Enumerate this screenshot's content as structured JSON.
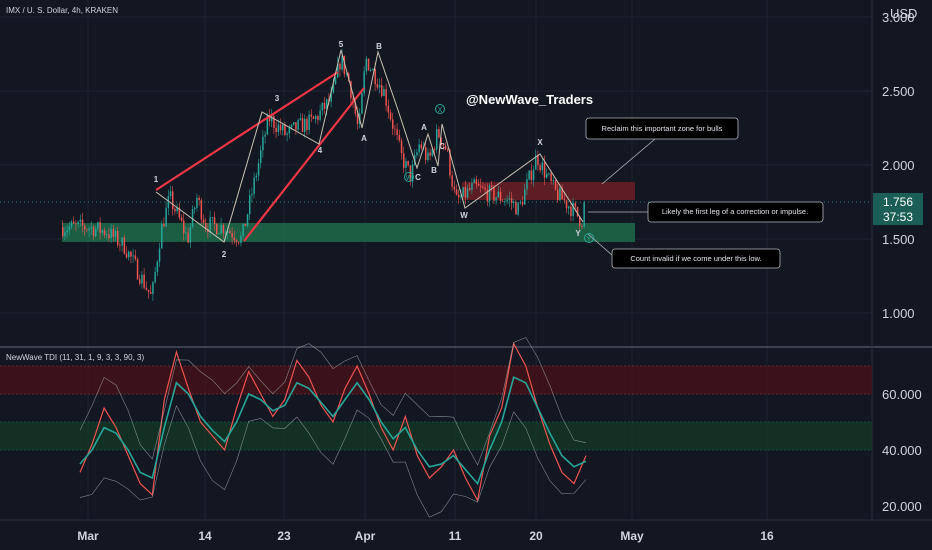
{
  "header": {
    "title": "IMX / U. S. Dollar, 4h, KRAKEN",
    "currency": "USD"
  },
  "watermark": "@NewWave_Traders",
  "price_badge": {
    "price": "1.756",
    "countdown": "37:53"
  },
  "colors": {
    "background": "#131722",
    "up": "#26a69a",
    "down": "#ef5350",
    "trendline": "#f23645",
    "wave_line": "#c9c1b0",
    "green_zone": "#1e6b4a",
    "red_zone": "#6b1e24",
    "badge": "#1a5e56"
  },
  "annotations": [
    "Reclaim this important zone for bulls",
    "Likely the first leg of a correction or impulse.",
    "Count invalid if we come under this low."
  ],
  "chart_data": [
    {
      "type": "candlestick",
      "title": "IMX / U. S. Dollar, 4h, KRAKEN",
      "y_axis": {
        "ticks": [
          "1.000",
          "1.500",
          "2.000",
          "2.500",
          "3.000"
        ],
        "range": [
          0.85,
          3.1
        ]
      },
      "x_axis": {
        "ticks": [
          "Mar",
          "14",
          "23",
          "Apr",
          "11",
          "20",
          "May",
          "16"
        ]
      },
      "price_path": [
        [
          "Mar 1",
          1.58
        ],
        [
          "Mar 3",
          1.55
        ],
        [
          "Mar 5",
          1.45
        ],
        [
          "Mar 7",
          1.22
        ],
        [
          "Mar 8",
          1.1
        ],
        [
          "Mar 9",
          1.55
        ],
        [
          "Mar 10",
          1.78
        ],
        [
          "Mar 12",
          1.5
        ],
        [
          "Mar 13",
          1.78
        ],
        [
          "Mar 14",
          1.6
        ],
        [
          "Mar 16",
          1.58
        ],
        [
          "Mar 18",
          1.5
        ],
        [
          "Mar 20",
          2.05
        ],
        [
          "Mar 21",
          2.32
        ],
        [
          "Mar 23",
          2.2
        ],
        [
          "Mar 24",
          2.25
        ],
        [
          "Mar 26",
          2.3
        ],
        [
          "Mar 28",
          2.45
        ],
        [
          "Mar 29",
          2.72
        ],
        [
          "Mar 30",
          2.55
        ],
        [
          "Mar 31",
          2.22
        ],
        [
          "Apr 1",
          2.72
        ],
        [
          "Apr 3",
          2.5
        ],
        [
          "Apr 5",
          2.05
        ],
        [
          "Apr 6",
          1.92
        ],
        [
          "Apr 7",
          2.15
        ],
        [
          "Apr 8",
          2.02
        ],
        [
          "Apr 9",
          2.22
        ],
        [
          "Apr 10",
          2.1
        ],
        [
          "Apr 11",
          1.75
        ],
        [
          "Apr 13",
          1.85
        ],
        [
          "Apr 15",
          1.8
        ],
        [
          "Apr 17",
          1.76
        ],
        [
          "Apr 18",
          1.7
        ],
        [
          "Apr 20",
          2.06
        ],
        [
          "Apr 22",
          1.82
        ],
        [
          "Apr 24",
          1.7
        ],
        [
          "Apr 25",
          1.62
        ],
        [
          "Apr 25 late",
          1.756
        ]
      ],
      "wave_labels": [
        {
          "label": "1",
          "date": "Mar 9",
          "price": 1.83
        },
        {
          "label": "2",
          "date": "Mar 18",
          "price": 1.42
        },
        {
          "label": "3",
          "date": "Mar 21",
          "price": 2.46
        },
        {
          "label": "4",
          "date": "Mar 27",
          "price": 2.08
        },
        {
          "label": "5",
          "date": "Mar 30",
          "price": 2.85
        },
        {
          "label": "A",
          "date": "Mar 31",
          "price": 2.17
        },
        {
          "label": "B",
          "date": "Apr 1",
          "price": 2.83
        },
        {
          "label": "A",
          "date": "Apr 8",
          "price": 2.25
        },
        {
          "label": "B",
          "date": "Apr 8",
          "price": 1.95
        },
        {
          "label": "C",
          "date": "Apr 9",
          "price": 2.31
        },
        {
          "label": "C",
          "date": "Apr 6",
          "price": 1.91
        },
        {
          "label": "W",
          "date": "Apr 11",
          "price": 1.66
        },
        {
          "label": "X",
          "date": "Apr 20",
          "price": 2.15
        },
        {
          "label": "Y",
          "date": "Apr 25",
          "price": 1.55
        }
      ],
      "circled_labels": [
        {
          "label": "W",
          "date": "Apr 6",
          "price": 1.92
        },
        {
          "label": "X",
          "date": "Apr 9",
          "price": 2.39
        },
        {
          "label": "Y",
          "date": "Apr 26",
          "price": 1.52
        }
      ],
      "zones": [
        {
          "name": "green",
          "from": 1.49,
          "to": 1.61
        },
        {
          "name": "red",
          "from": 1.77,
          "to": 1.89
        }
      ]
    },
    {
      "type": "line",
      "title": "NewWave TDI (11, 31, 1, 9, 3, 3, 90, 3)",
      "y_axis": {
        "ticks": [
          "20.000",
          "40.000",
          "60.000"
        ]
      },
      "bands": [
        {
          "name": "upper",
          "from": 60,
          "to": 70
        },
        {
          "name": "lower",
          "from": 40,
          "to": 50
        }
      ],
      "series": [
        {
          "color": "#ef5350",
          "values": [
            32,
            42,
            55,
            48,
            38,
            28,
            24,
            58,
            75,
            62,
            50,
            45,
            40,
            55,
            68,
            60,
            52,
            58,
            72,
            66,
            56,
            50,
            62,
            70,
            60,
            48,
            40,
            52,
            38,
            30,
            34,
            40,
            30,
            22,
            45,
            55,
            78,
            70,
            55,
            42,
            32,
            28,
            38
          ]
        },
        {
          "color": "#26a69a",
          "values": [
            35,
            40,
            48,
            46,
            40,
            32,
            30,
            48,
            64,
            60,
            52,
            47,
            43,
            50,
            60,
            58,
            54,
            56,
            64,
            62,
            57,
            52,
            58,
            64,
            58,
            50,
            44,
            48,
            40,
            34,
            35,
            38,
            33,
            28,
            40,
            50,
            66,
            64,
            55,
            46,
            38,
            34,
            36
          ]
        }
      ]
    }
  ]
}
